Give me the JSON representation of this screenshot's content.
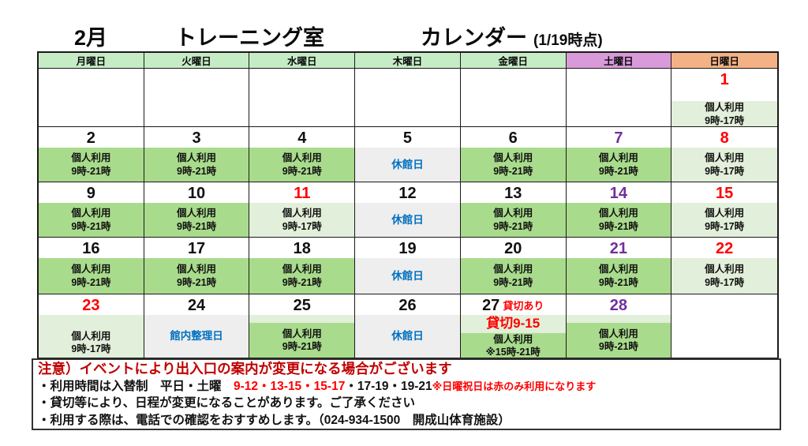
{
  "title": {
    "month": "2月",
    "room": "トレーニング室",
    "name": "カレンダー",
    "as_of": "(1/19時点)"
  },
  "weekdays": [
    {
      "label": "月曜日",
      "type": "weekday"
    },
    {
      "label": "火曜日",
      "type": "weekday"
    },
    {
      "label": "水曜日",
      "type": "weekday"
    },
    {
      "label": "木曜日",
      "type": "weekday"
    },
    {
      "label": "金曜日",
      "type": "weekday"
    },
    {
      "label": "土曜日",
      "type": "saturday"
    },
    {
      "label": "日曜日",
      "type": "sunday"
    }
  ],
  "weeks": [
    [
      {
        "type": "empty"
      },
      {
        "type": "empty"
      },
      {
        "type": "empty"
      },
      {
        "type": "empty"
      },
      {
        "type": "empty"
      },
      {
        "type": "empty"
      },
      {
        "day": "1",
        "day_color": "red",
        "type": "personal_light",
        "lines": [
          "個人利用",
          "9時-17時"
        ]
      }
    ],
    [
      {
        "day": "2",
        "day_color": "black",
        "type": "personal",
        "lines": [
          "個人利用",
          "9時-21時"
        ]
      },
      {
        "day": "3",
        "day_color": "black",
        "type": "personal",
        "lines": [
          "個人利用",
          "9時-21時"
        ]
      },
      {
        "day": "4",
        "day_color": "black",
        "type": "personal",
        "lines": [
          "個人利用",
          "9時-21時"
        ]
      },
      {
        "day": "5",
        "day_color": "black",
        "type": "closed",
        "lines": [
          "休館日"
        ]
      },
      {
        "day": "6",
        "day_color": "black",
        "type": "personal",
        "lines": [
          "個人利用",
          "9時-21時"
        ]
      },
      {
        "day": "7",
        "day_color": "purple",
        "type": "personal",
        "lines": [
          "個人利用",
          "9時-21時"
        ]
      },
      {
        "day": "8",
        "day_color": "red",
        "type": "personal_light",
        "lines": [
          "個人利用",
          "9時-17時"
        ]
      }
    ],
    [
      {
        "day": "9",
        "day_color": "black",
        "type": "personal",
        "lines": [
          "個人利用",
          "9時-21時"
        ]
      },
      {
        "day": "10",
        "day_color": "black",
        "type": "personal",
        "lines": [
          "個人利用",
          "9時-21時"
        ]
      },
      {
        "day": "11",
        "day_color": "red",
        "type": "personal_light",
        "lines": [
          "個人利用",
          "9時-17時"
        ]
      },
      {
        "day": "12",
        "day_color": "black",
        "type": "closed",
        "lines": [
          "休館日"
        ]
      },
      {
        "day": "13",
        "day_color": "black",
        "type": "personal",
        "lines": [
          "個人利用",
          "9時-21時"
        ]
      },
      {
        "day": "14",
        "day_color": "purple",
        "type": "personal",
        "lines": [
          "個人利用",
          "9時-21時"
        ]
      },
      {
        "day": "15",
        "day_color": "red",
        "type": "personal_light",
        "lines": [
          "個人利用",
          "9時-17時"
        ]
      }
    ],
    [
      {
        "day": "16",
        "day_color": "black",
        "type": "personal",
        "lines": [
          "個人利用",
          "9時-21時"
        ]
      },
      {
        "day": "17",
        "day_color": "black",
        "type": "personal",
        "lines": [
          "個人利用",
          "9時-21時"
        ]
      },
      {
        "day": "18",
        "day_color": "black",
        "type": "personal",
        "lines": [
          "個人利用",
          "9時-21時"
        ]
      },
      {
        "day": "19",
        "day_color": "black",
        "type": "closed",
        "lines": [
          "休館日"
        ]
      },
      {
        "day": "20",
        "day_color": "black",
        "type": "personal",
        "lines": [
          "個人利用",
          "9時-21時"
        ]
      },
      {
        "day": "21",
        "day_color": "purple",
        "type": "personal",
        "lines": [
          "個人利用",
          "9時-21時"
        ]
      },
      {
        "day": "22",
        "day_color": "red",
        "type": "personal_light",
        "lines": [
          "個人利用",
          "9時-17時"
        ]
      }
    ],
    [
      {
        "day": "23",
        "day_color": "red",
        "type": "personal_light",
        "lines": [
          "個人利用",
          "9時-17時"
        ]
      },
      {
        "day": "24",
        "day_color": "black",
        "type": "maintenance",
        "lines": [
          "館内整理日"
        ]
      },
      {
        "day": "25",
        "day_color": "black",
        "type": "personal_band",
        "lines": [
          "個人利用",
          "9時-21時"
        ]
      },
      {
        "day": "26",
        "day_color": "black",
        "type": "closed",
        "lines": [
          "休館日"
        ]
      },
      {
        "day": "27",
        "day_color": "black",
        "tag": "貸切あり",
        "type": "reserved",
        "band_text": "貸切9-15",
        "lines": [
          "個人利用",
          "※15時-21時"
        ]
      },
      {
        "day": "28",
        "day_color": "purple",
        "type": "personal_band",
        "lines": [
          "個人利用",
          "9時-21時"
        ]
      },
      {
        "type": "empty"
      }
    ]
  ],
  "notes": {
    "line1": "注意）イベントにより出入口の案内が変更になる場合がございます",
    "line2_parts": [
      {
        "text": "・利用時間は入替制　平日・土曜　",
        "style": "black"
      },
      {
        "text": "9-12・13-15・15-17",
        "style": "red"
      },
      {
        "text": "・17-19・19-21",
        "style": "black"
      },
      {
        "text": "※日曜祝日は赤のみ利用になります",
        "style": "red_small"
      }
    ],
    "line3": "・貸切等により、日程が変更になることがあります。ご了承ください",
    "line4": "・利用する際は、電話での確認をおすすめします。（024-934-1500　開成山体育施設）"
  },
  "colors": {
    "cell_green": "#a9db8c",
    "cell_light_green": "#e2efda",
    "cell_gray": "#eeeeee",
    "header_weekday": "#c6ecc6",
    "header_saturday": "#d99ad9",
    "header_sunday": "#f3b285",
    "holiday_red": "#ff0000",
    "saturday_purple": "#7030a0",
    "closed_blue": "#0070c0"
  }
}
